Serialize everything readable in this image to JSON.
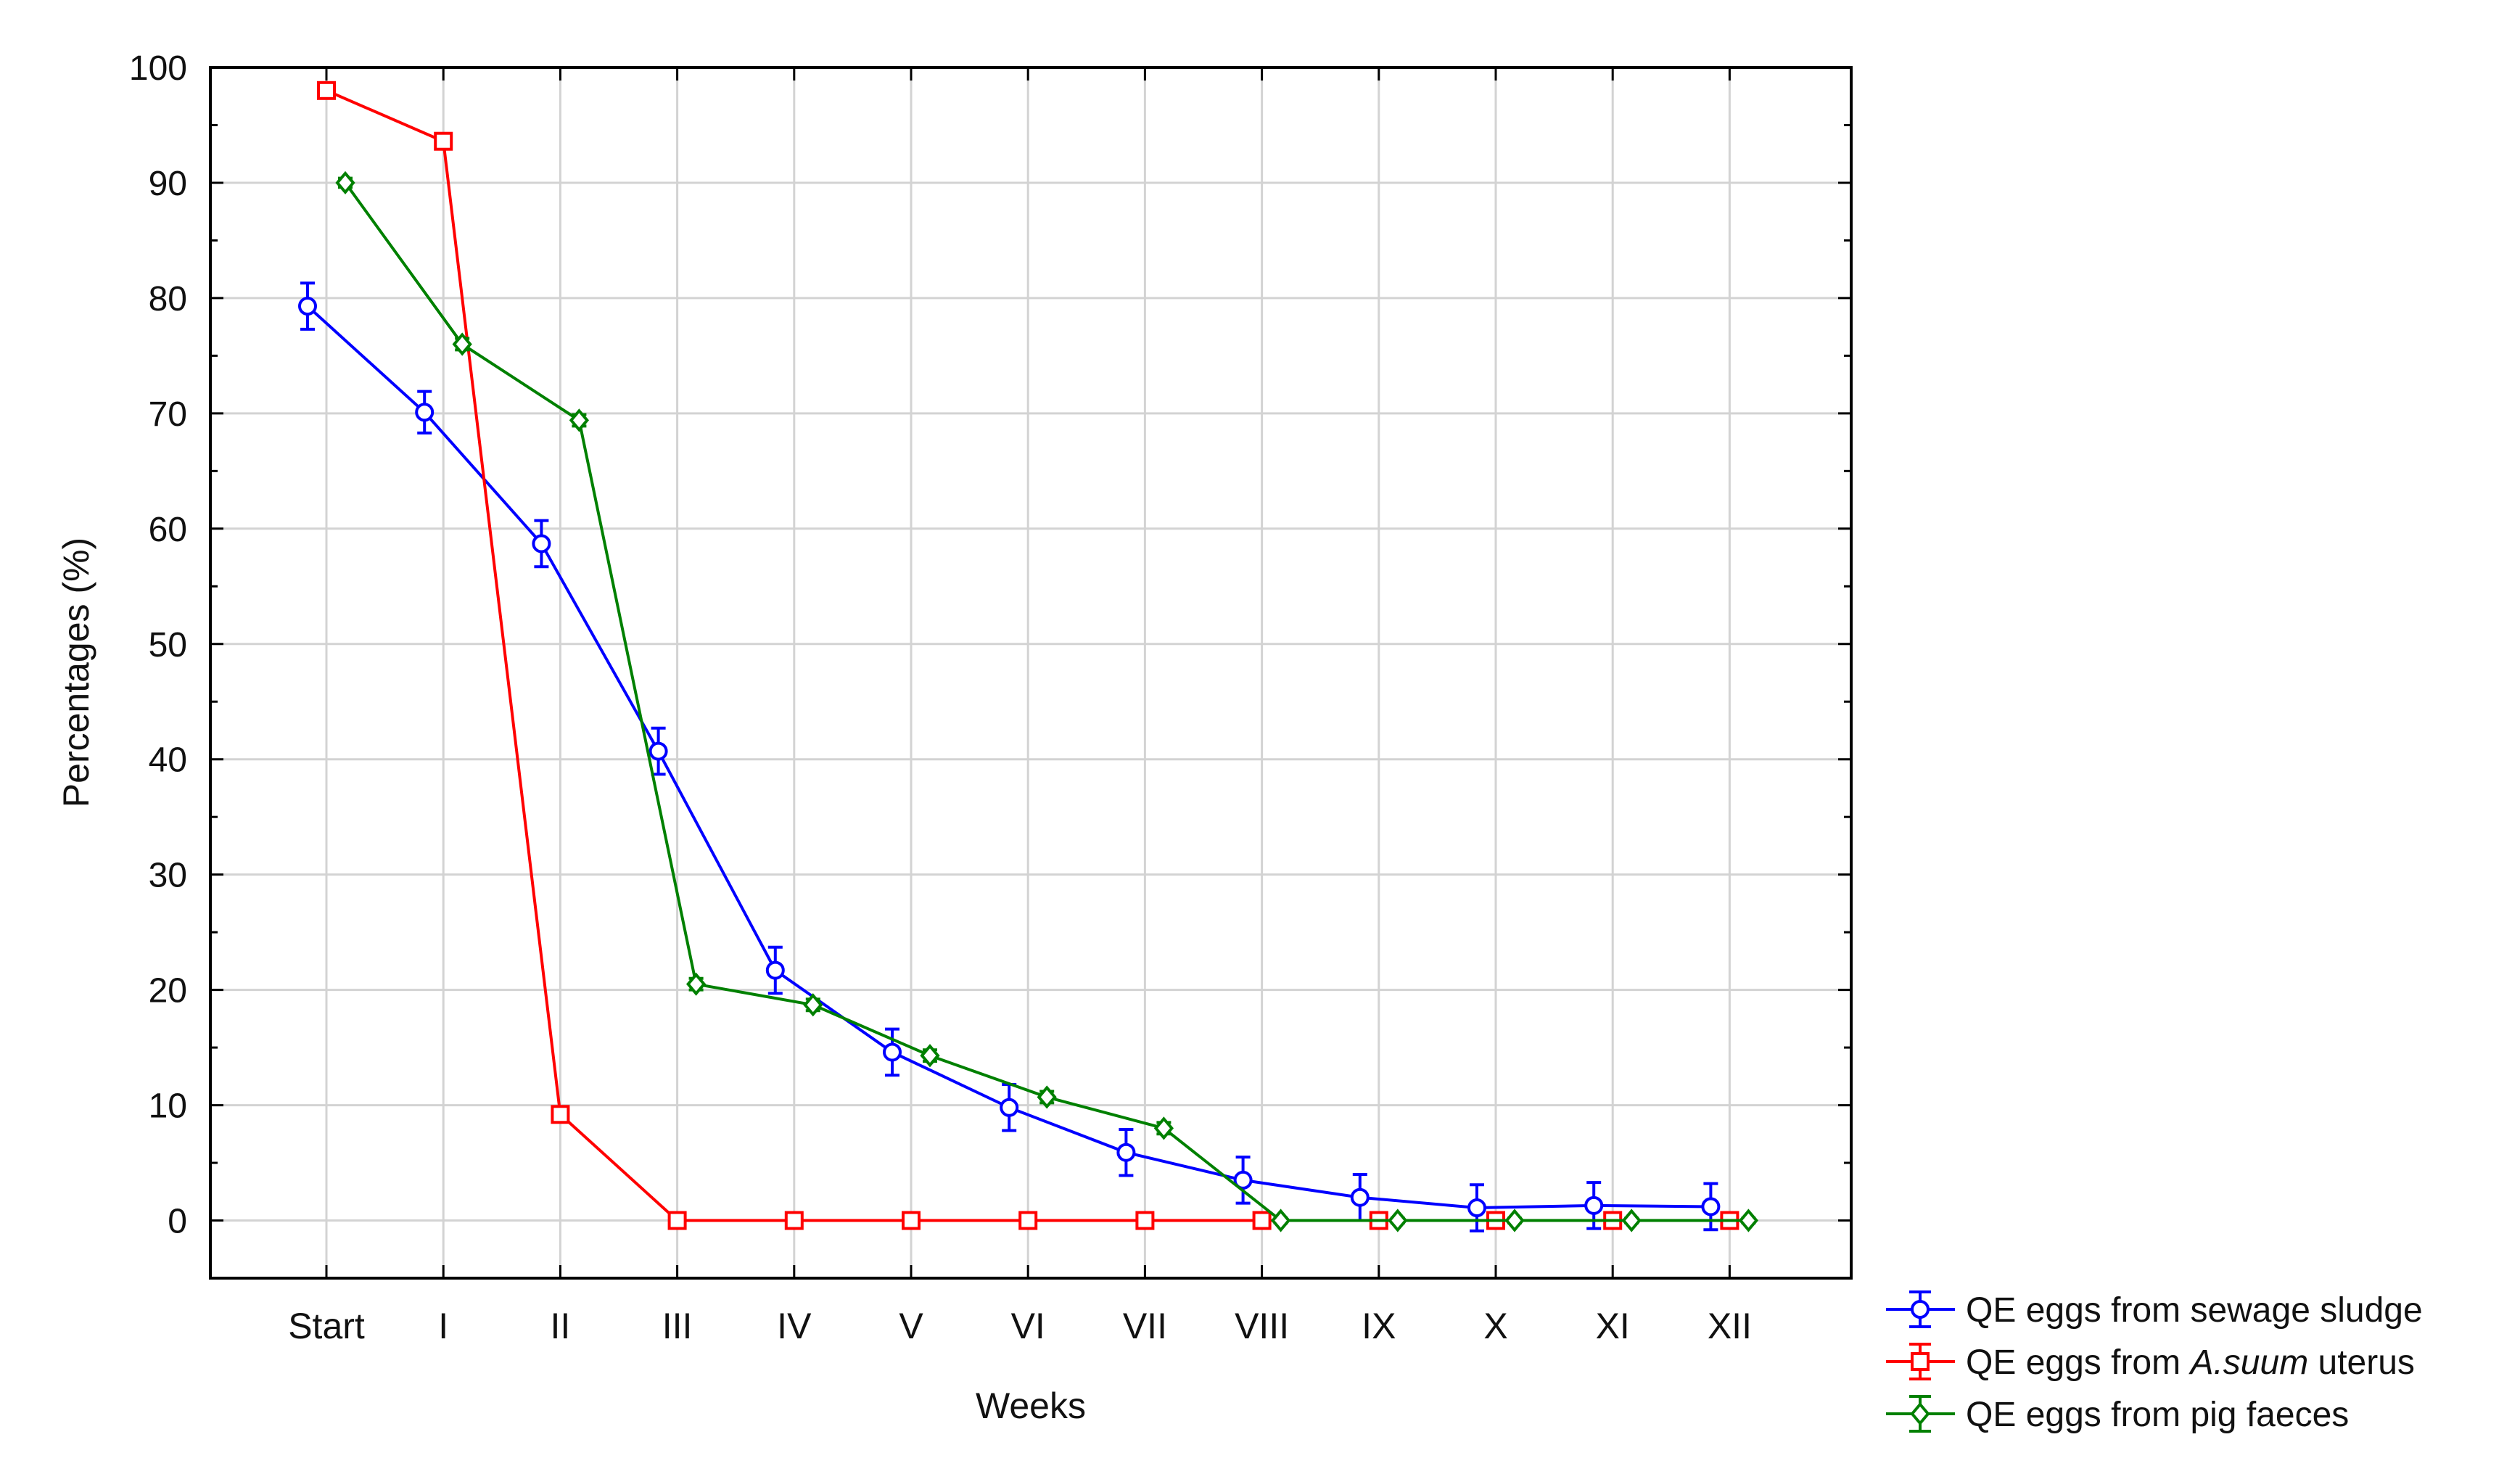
{
  "chart_data": {
    "type": "line",
    "title": "",
    "xlabel": "Weeks",
    "ylabel": "Percentages (%)",
    "ylim": [
      -5,
      100
    ],
    "yticks": [
      0,
      10,
      20,
      30,
      40,
      50,
      60,
      70,
      80,
      90,
      100
    ],
    "grid": true,
    "legend_position": "bottom-right",
    "categories": [
      "Start",
      "I",
      "II",
      "III",
      "IV",
      "V",
      "VI",
      "VII",
      "VIII",
      "IX",
      "X",
      "XI",
      "XII"
    ],
    "series": [
      {
        "name": "QE eggs from sewage sludge",
        "color": "#0000ff",
        "marker": "circle",
        "values": [
          79.3,
          70.1,
          58.7,
          40.7,
          21.7,
          14.6,
          9.8,
          5.9,
          3.5,
          2.0,
          1.1,
          1.3,
          1.2
        ],
        "errors": [
          2.0,
          1.8,
          2.0,
          2.0,
          2.0,
          2.0,
          2.0,
          2.0,
          2.0,
          2.0,
          2.0,
          2.0,
          2.0
        ]
      },
      {
        "name": "QE eggs from A.suum uterus",
        "color": "#ff0000",
        "marker": "square",
        "values": [
          98.0,
          93.6,
          9.2,
          0,
          0,
          0,
          0,
          0,
          0,
          0,
          0,
          0,
          0
        ],
        "errors": [
          0.3,
          0.5,
          0.6,
          0.2,
          0.2,
          0.2,
          0.2,
          0.2,
          0.2,
          0.2,
          0.2,
          0.2,
          0.2
        ]
      },
      {
        "name": "QE eggs from pig faeces",
        "color": "#008000",
        "marker": "diamond",
        "values": [
          90.0,
          76.0,
          69.4,
          20.5,
          18.7,
          14.3,
          10.7,
          8.0,
          0,
          0,
          0,
          0,
          0
        ],
        "errors": [
          0.4,
          0.5,
          0.5,
          0.5,
          0.5,
          0.5,
          0.5,
          0.5,
          0.2,
          0.2,
          0.2,
          0.2,
          0.2
        ]
      }
    ],
    "legend": {
      "entries": [
        {
          "prefix": "QE eggs from sewage sludge",
          "italic": "",
          "suffix": ""
        },
        {
          "prefix": "QE eggs from ",
          "italic": "A.suum",
          "suffix": " uterus"
        },
        {
          "prefix": "QE eggs from pig faeces",
          "italic": "",
          "suffix": ""
        }
      ]
    }
  }
}
